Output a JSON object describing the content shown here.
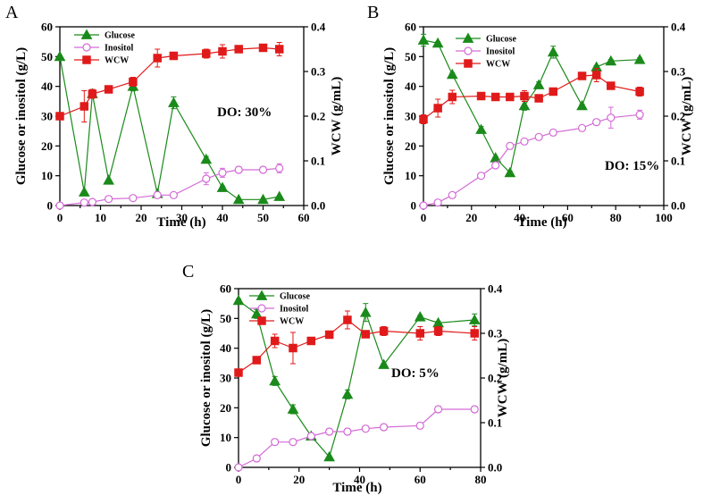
{
  "colors": {
    "glucose": "#1a8a1a",
    "inositol": "#d36ad6",
    "wcw": "#e01a1a",
    "axis": "#000000"
  },
  "chart_data": [
    {
      "panel": "A",
      "type": "line",
      "annotation": "DO: 30%",
      "xlabel": "Time (h)",
      "ylabel_left": "Glucose or inositol (g/L)",
      "ylabel_right": "WCW (g/mL)",
      "xlim": [
        0,
        60
      ],
      "xticks": [
        "0",
        "10",
        "20",
        "30",
        "40",
        "50",
        "60"
      ],
      "ylim_left": [
        0,
        60
      ],
      "yticks_left": [
        "0",
        "10",
        "20",
        "30",
        "40",
        "50",
        "60"
      ],
      "ylim_right": [
        0,
        0.4
      ],
      "yticks_right": [
        "0.0",
        "0.1",
        "0.2",
        "0.3",
        "0.4"
      ],
      "legend": [
        "Glucose",
        "Inositol",
        "WCW"
      ],
      "series": [
        {
          "name": "Glucose",
          "axis": "left",
          "marker": "triangle",
          "x": [
            0,
            6,
            8,
            12,
            18,
            24,
            28,
            36,
            40,
            44,
            50,
            54
          ],
          "y": [
            50,
            4.5,
            37.5,
            8.5,
            40,
            4,
            34.5,
            15.5,
            6,
            2,
            2,
            3
          ],
          "err": [
            0,
            0,
            0,
            0,
            1.5,
            0.5,
            2,
            1,
            0.5,
            0,
            0,
            0
          ]
        },
        {
          "name": "Inositol",
          "axis": "left",
          "marker": "circle",
          "x": [
            0,
            6,
            8,
            12,
            18,
            24,
            28,
            36,
            40,
            44,
            50,
            54
          ],
          "y": [
            0,
            1,
            1.2,
            2.2,
            2.5,
            3.5,
            3.5,
            9,
            11,
            12,
            12,
            12.5
          ],
          "err": [
            0,
            0.3,
            0.5,
            0.3,
            0.3,
            0.5,
            0.5,
            2,
            1.5,
            1,
            1,
            1.5
          ]
        },
        {
          "name": "WCW",
          "axis": "right",
          "marker": "square",
          "x": [
            0,
            6,
            8,
            12,
            18,
            24,
            28,
            36,
            40,
            44,
            50,
            54
          ],
          "y": [
            0.2,
            0.222,
            0.25,
            0.26,
            0.277,
            0.33,
            0.335,
            0.34,
            0.345,
            0.35,
            0.353,
            0.35
          ],
          "err": [
            0,
            0.035,
            0.01,
            0.005,
            0.01,
            0.02,
            0.005,
            0.01,
            0.015,
            0.005,
            0.005,
            0.015
          ]
        }
      ]
    },
    {
      "panel": "B",
      "type": "line",
      "annotation": "DO: 15%",
      "xlabel": "Time (h)",
      "ylabel_left": "Glucose or inositol (g/L)",
      "ylabel_right": "WCW (g/mL)",
      "xlim": [
        0,
        100
      ],
      "xticks": [
        "0",
        "20",
        "40",
        "60",
        "80",
        "100"
      ],
      "ylim_left": [
        0,
        60
      ],
      "yticks_left": [
        "0",
        "10",
        "20",
        "30",
        "40",
        "50",
        "60"
      ],
      "ylim_right": [
        0,
        0.4
      ],
      "yticks_right": [
        "0.0",
        "0.1",
        "0.2",
        "0.3",
        "0.4"
      ],
      "legend": [
        "Glucose",
        "Inositol",
        "WCW"
      ],
      "series": [
        {
          "name": "Glucose",
          "axis": "left",
          "marker": "triangle",
          "x": [
            0,
            6,
            12,
            24,
            30,
            36,
            42,
            48,
            54,
            66,
            72,
            78,
            90
          ],
          "y": [
            55.5,
            54.5,
            44,
            25.5,
            16,
            11,
            33.5,
            40.5,
            51.5,
            33.5,
            46.5,
            48.5,
            49
          ],
          "err": [
            2,
            0.5,
            0.5,
            1,
            0.5,
            0.5,
            1.5,
            1,
            2,
            0.5,
            0.5,
            0.5,
            0.5
          ]
        },
        {
          "name": "Inositol",
          "axis": "left",
          "marker": "circle",
          "x": [
            0,
            6,
            12,
            24,
            30,
            36,
            42,
            48,
            54,
            66,
            72,
            78,
            90
          ],
          "y": [
            0,
            1,
            3.5,
            10,
            13.5,
            20,
            21.5,
            23,
            24.5,
            26,
            28,
            29.5,
            30.5
          ],
          "err": [
            0,
            0.5,
            0.5,
            0.5,
            1,
            1,
            0.5,
            0.5,
            1,
            0.5,
            1,
            3.5,
            1.5
          ]
        },
        {
          "name": "WCW",
          "axis": "right",
          "marker": "square",
          "x": [
            0,
            6,
            12,
            24,
            30,
            36,
            42,
            48,
            54,
            66,
            72,
            78,
            90
          ],
          "y": [
            0.193,
            0.218,
            0.243,
            0.245,
            0.243,
            0.243,
            0.245,
            0.24,
            0.255,
            0.29,
            0.292,
            0.268,
            0.255
          ],
          "err": [
            0.01,
            0.02,
            0.015,
            0,
            0,
            0,
            0.012,
            0,
            0,
            0,
            0.015,
            0,
            0.01
          ]
        }
      ]
    },
    {
      "panel": "C",
      "type": "line",
      "annotation": "DO: 5%",
      "xlabel": "Time (h)",
      "ylabel_left": "Glucose or inositol (g/L)",
      "ylabel_right": "WCW (g/mL)",
      "xlim": [
        0,
        80
      ],
      "xticks": [
        "0",
        "20",
        "40",
        "60",
        "80"
      ],
      "ylim_left": [
        0,
        60
      ],
      "yticks_left": [
        "0",
        "10",
        "20",
        "30",
        "40",
        "50",
        "60"
      ],
      "ylim_right": [
        0,
        0.4
      ],
      "yticks_right": [
        "0.0",
        "0.1",
        "0.2",
        "0.3",
        "0.4"
      ],
      "legend": [
        "Glucose",
        "Inositol",
        "WCW"
      ],
      "series": [
        {
          "name": "Glucose",
          "axis": "left",
          "marker": "triangle",
          "x": [
            0,
            6,
            12,
            18,
            24,
            30,
            36,
            42,
            48,
            60,
            66,
            78
          ],
          "y": [
            56,
            51.5,
            29,
            19.5,
            10.5,
            3.5,
            24.5,
            52,
            34.5,
            50.5,
            48.5,
            49.5
          ],
          "err": [
            0.5,
            1.5,
            1.5,
            1.5,
            0.5,
            0,
            1.5,
            3,
            0.5,
            0.5,
            0.5,
            2
          ]
        },
        {
          "name": "Inositol",
          "axis": "left",
          "marker": "circle",
          "x": [
            0,
            6,
            12,
            18,
            24,
            30,
            36,
            42,
            48,
            60,
            66,
            78
          ],
          "y": [
            0,
            3,
            8.5,
            8.5,
            10.5,
            12,
            12,
            13,
            13.5,
            14,
            19.5,
            19.5
          ],
          "err": [
            0,
            1,
            1,
            1,
            1,
            1,
            1,
            1,
            1,
            1,
            1,
            1
          ]
        },
        {
          "name": "WCW",
          "axis": "right",
          "marker": "square",
          "x": [
            0,
            6,
            12,
            18,
            24,
            30,
            36,
            42,
            48,
            60,
            66,
            78
          ],
          "y": [
            0.212,
            0.24,
            0.283,
            0.267,
            0.283,
            0.297,
            0.33,
            0.298,
            0.305,
            0.3,
            0.305,
            0.3
          ],
          "err": [
            0.005,
            0.005,
            0.015,
            0.035,
            0.005,
            0.005,
            0.02,
            0.005,
            0.01,
            0.015,
            0.01,
            0.015
          ]
        }
      ]
    }
  ]
}
